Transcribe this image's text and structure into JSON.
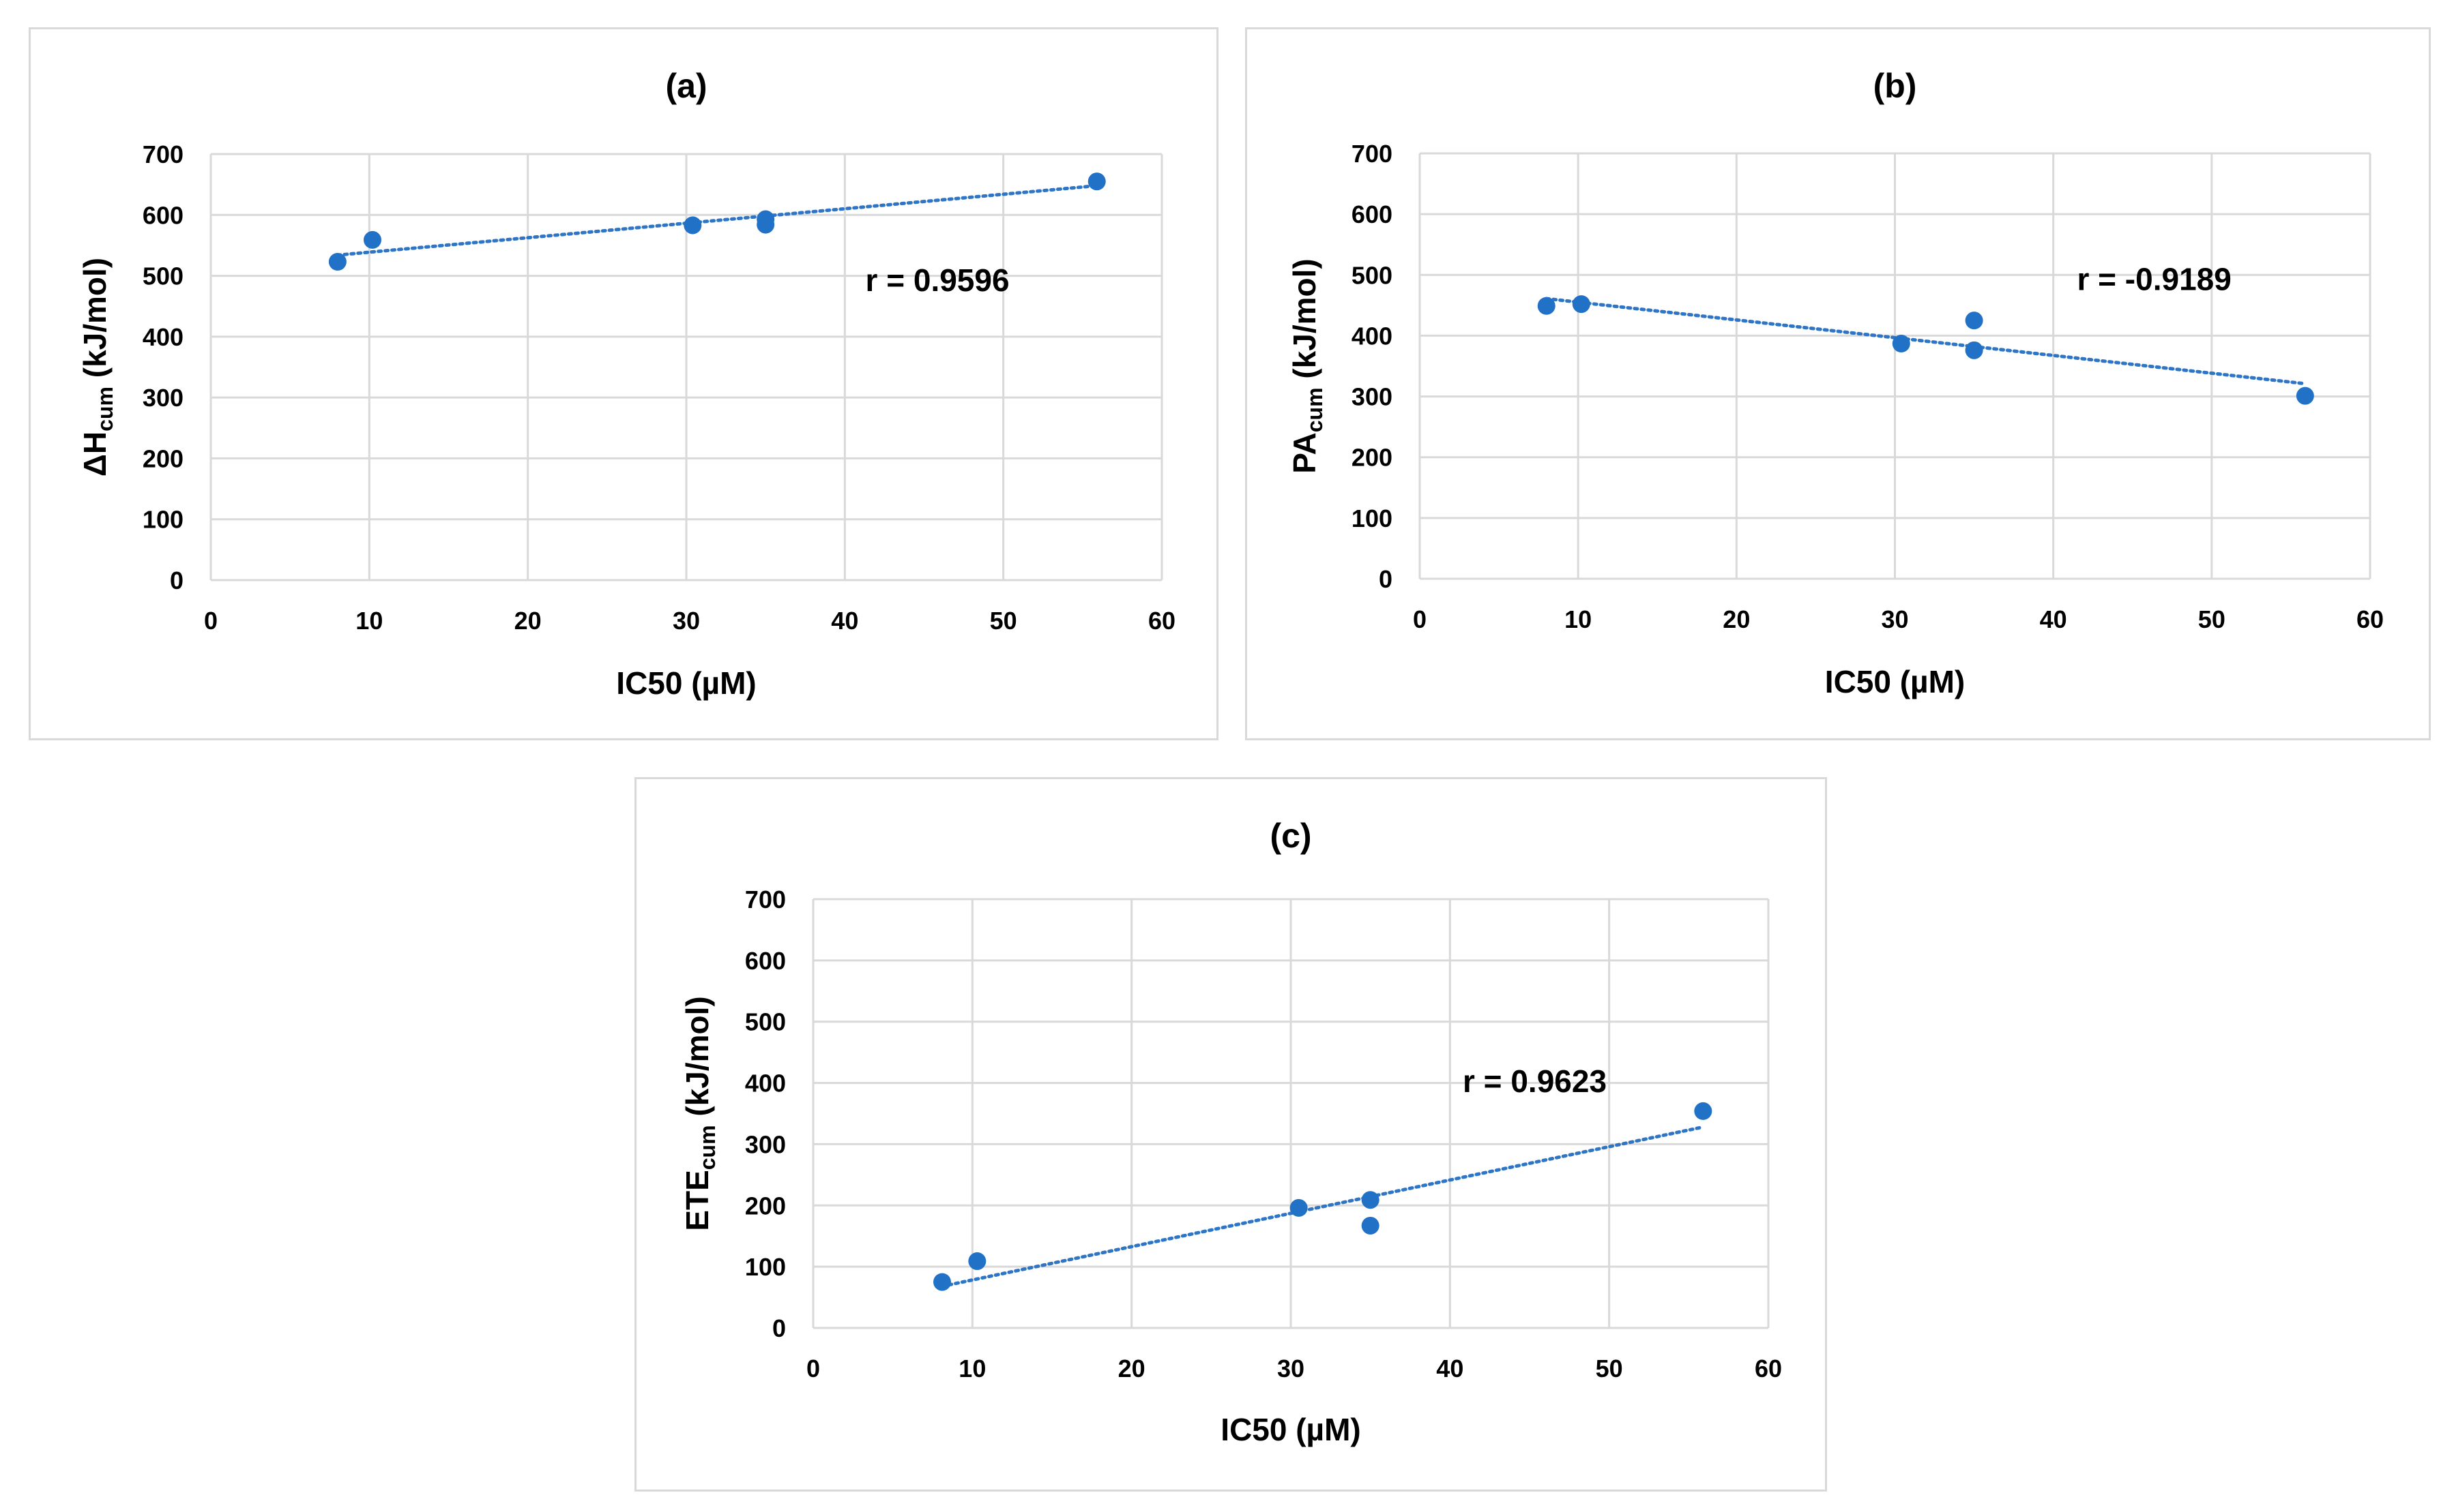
{
  "colors": {
    "marker": "#2171c7",
    "trend": "#2e75c6",
    "grid": "#d9d9d9",
    "text": "#000000"
  },
  "chart_data": [
    {
      "id": "a",
      "type": "scatter",
      "title": "(a)",
      "xlabel": "IC50 (µM)",
      "ylabel": {
        "main": "ΔH",
        "sub": "cum",
        "unit": " (kJ/mol)"
      },
      "xlim": [
        0,
        60
      ],
      "ylim": [
        0,
        700
      ],
      "xticks": [
        0,
        10,
        20,
        30,
        40,
        50,
        60
      ],
      "yticks": [
        0,
        100,
        200,
        300,
        400,
        500,
        600,
        700
      ],
      "grid": true,
      "points": [
        {
          "x": 8.0,
          "y": 523
        },
        {
          "x": 10.2,
          "y": 559
        },
        {
          "x": 30.4,
          "y": 583
        },
        {
          "x": 35.0,
          "y": 593
        },
        {
          "x": 35.0,
          "y": 584
        },
        {
          "x": 55.9,
          "y": 655
        }
      ],
      "trendline": {
        "x1": 8.0,
        "y1": 534,
        "x2": 55.9,
        "y2": 648
      },
      "annotation": {
        "text": "r = 0.9596",
        "x": 41.3,
        "y": 475
      }
    },
    {
      "id": "b",
      "type": "scatter",
      "title": "(b)",
      "xlabel": "IC50 (µM)",
      "ylabel": {
        "main": "PA",
        "sub": "cum",
        "unit": " (kJ/mol)"
      },
      "xlim": [
        0,
        60
      ],
      "ylim": [
        0,
        700
      ],
      "xticks": [
        0,
        10,
        20,
        30,
        40,
        50,
        60
      ],
      "yticks": [
        0,
        100,
        200,
        300,
        400,
        500,
        600,
        700
      ],
      "grid": true,
      "points": [
        {
          "x": 8.0,
          "y": 449
        },
        {
          "x": 10.2,
          "y": 452
        },
        {
          "x": 30.4,
          "y": 387
        },
        {
          "x": 35.0,
          "y": 425
        },
        {
          "x": 35.0,
          "y": 376
        },
        {
          "x": 55.9,
          "y": 301
        }
      ],
      "trendline": {
        "x1": 8.0,
        "y1": 461,
        "x2": 55.9,
        "y2": 321
      },
      "annotation": {
        "text": "r = -0.9189",
        "x": 41.5,
        "y": 475
      }
    },
    {
      "id": "c",
      "type": "scatter",
      "title": "(c)",
      "xlabel": "IC50 (µM)",
      "ylabel": {
        "main": "ETE",
        "sub": "cum",
        "unit": " (kJ/mol)"
      },
      "xlim": [
        0,
        60
      ],
      "ylim": [
        0,
        700
      ],
      "xticks": [
        0,
        10,
        20,
        30,
        40,
        50,
        60
      ],
      "yticks": [
        0,
        100,
        200,
        300,
        400,
        500,
        600,
        700
      ],
      "grid": true,
      "points": [
        {
          "x": 8.1,
          "y": 75
        },
        {
          "x": 10.3,
          "y": 109
        },
        {
          "x": 30.5,
          "y": 196
        },
        {
          "x": 35.0,
          "y": 209
        },
        {
          "x": 35.0,
          "y": 167
        },
        {
          "x": 55.9,
          "y": 354
        }
      ],
      "trendline": {
        "x1": 8.1,
        "y1": 68,
        "x2": 55.9,
        "y2": 328
      },
      "annotation": {
        "text": "r = 0.9623",
        "x": 40.8,
        "y": 385
      }
    }
  ]
}
